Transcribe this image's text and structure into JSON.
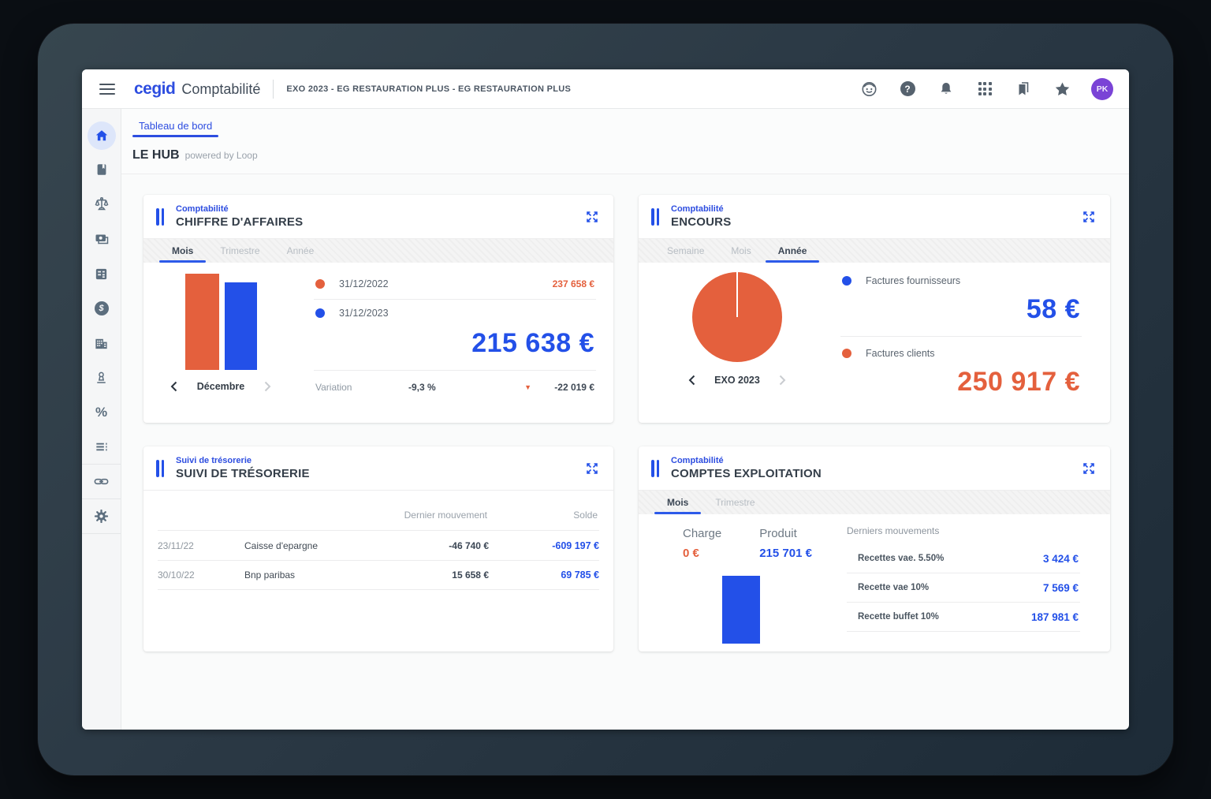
{
  "window": {
    "brand": "cegid",
    "app_name": "Comptabilité",
    "context": "EXO 2023 - EG RESTAURATION PLUS - EG RESTAURATION PLUS",
    "avatar_initials": "PK"
  },
  "glyphs": {
    "help": "?",
    "dollar": "$",
    "percent": "%",
    "triangle_down": "▼"
  },
  "topbar_icons": [
    "assistant",
    "help",
    "notifications",
    "apps",
    "bookmarks",
    "favorites"
  ],
  "sidebar_icons": [
    "home",
    "journal",
    "scales",
    "banknotes",
    "cash-register",
    "dollar",
    "bank",
    "stamp",
    "percent",
    "ledger",
    "link",
    "settings"
  ],
  "page": {
    "tab": "Tableau de bord",
    "title": "LE HUB",
    "powered": "powered by Loop"
  },
  "colors": {
    "accent_blue": "#2350e8",
    "accent_orange": "#e4603d",
    "avatar_purple": "#7a43d6"
  },
  "cards": {
    "ca": {
      "category": "Comptabilité",
      "title": "CHIFFRE D'AFFAIRES",
      "tabs": [
        "Mois",
        "Trimestre",
        "Année"
      ],
      "active_tab": "Mois",
      "period": "Décembre",
      "legend": [
        {
          "label": "31/12/2022",
          "value": "237 658 €"
        },
        {
          "label": "31/12/2023",
          "value": "215 638 €"
        }
      ],
      "big_value": "215 638 €",
      "variation": {
        "label": "Variation",
        "percent": "-9,3 %",
        "amount": "-22 019 €"
      }
    },
    "encours": {
      "category": "Comptabilité",
      "title": "ENCOURS",
      "tabs": [
        "Semaine",
        "Mois",
        "Année"
      ],
      "active_tab": "Année",
      "period": "EXO 2023",
      "legend": [
        {
          "label": "Factures fournisseurs",
          "value": "58 €"
        },
        {
          "label": "Factures clients",
          "value": "250 917 €"
        }
      ]
    },
    "tresorerie": {
      "category": "Suivi de trésorerie",
      "title": "SUIVI DE TRÉSORERIE",
      "columns": {
        "movement": "Dernier mouvement",
        "balance": "Solde"
      },
      "rows": [
        {
          "date": "23/11/22",
          "name": "Caisse d'epargne",
          "movement": "-46 740 €",
          "balance": "-609 197 €"
        },
        {
          "date": "30/10/22",
          "name": "Bnp paribas",
          "movement": "15 658 €",
          "balance": "69 785 €"
        }
      ]
    },
    "exploitation": {
      "category": "Comptabilité",
      "title": "COMPTES EXPLOITATION",
      "tabs": [
        "Mois",
        "Trimestre"
      ],
      "active_tab": "Mois",
      "charge_label": "Charge",
      "charge_value": "0 €",
      "produit_label": "Produit",
      "produit_value": "215 701 €",
      "movements_title": "Derniers mouvements",
      "movements": [
        {
          "label": "Recettes vae. 5.50%",
          "value": "3 424 €"
        },
        {
          "label": "Recette vae 10%",
          "value": "7 569 €"
        },
        {
          "label": "Recette buffet 10%",
          "value": "187 981 €"
        }
      ]
    }
  },
  "chart_data": [
    {
      "type": "bar",
      "title": "Chiffre d'affaires — Décembre",
      "categories": [
        "31/12/2022",
        "31/12/2023"
      ],
      "values": [
        237658,
        215638
      ],
      "colors": [
        "#e4603d",
        "#2350e8"
      ],
      "variation_percent": -9.3,
      "variation_amount": -22019,
      "legend_position": "right",
      "grid": false
    },
    {
      "type": "pie",
      "title": "Encours — EXO 2023",
      "labels": [
        "Factures fournisseurs",
        "Factures clients"
      ],
      "values": [
        58,
        250917
      ],
      "colors": [
        "#2350e8",
        "#e4603d"
      ],
      "legend_position": "right"
    },
    {
      "type": "bar",
      "title": "Comptes exploitation — Mois",
      "categories": [
        "Charge",
        "Produit"
      ],
      "values": [
        0,
        215701
      ],
      "colors": [
        "#e4603d",
        "#2350e8"
      ],
      "grid": false
    }
  ]
}
